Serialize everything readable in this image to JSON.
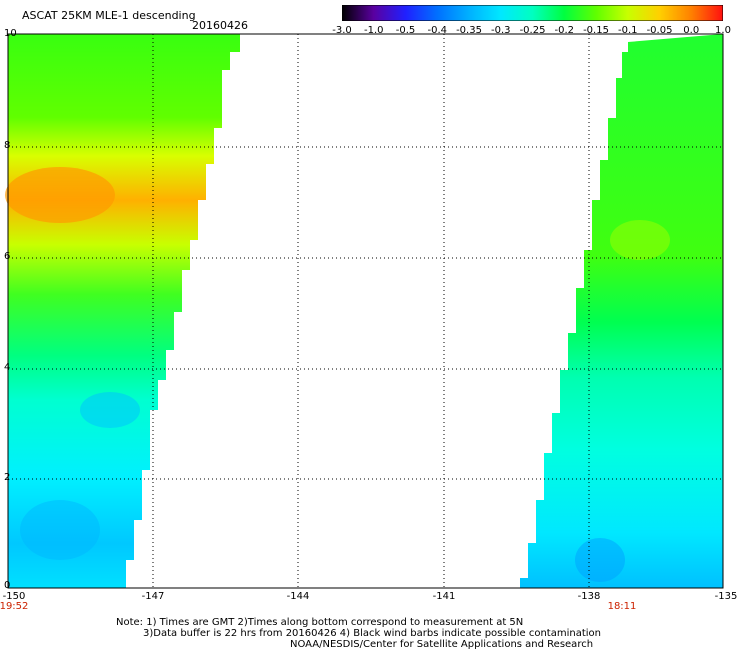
{
  "header": {
    "title": "ASCAT 25KM MLE-1 descending",
    "date": "20160426"
  },
  "colorbar": {
    "labels": [
      "-3.0",
      "-1.0",
      "-0.5",
      "-0.4",
      "-0.35",
      "-0.3",
      "-0.25",
      "-0.2",
      "-0.15",
      "-0.1",
      "-0.05",
      "0.0",
      "1.0"
    ],
    "colors": [
      "#000000",
      "#5a00a0",
      "#2020ff",
      "#0070ff",
      "#00b0ff",
      "#00e8ff",
      "#00ffc0",
      "#00ff40",
      "#60ff00",
      "#c8ff00",
      "#ffd000",
      "#ff8000",
      "#ff1010"
    ]
  },
  "axes": {
    "x_ticks": [
      "-150",
      "-147",
      "-144",
      "-141",
      "-138",
      "-135"
    ],
    "y_ticks": [
      "0",
      "2",
      "4",
      "6",
      "8",
      "10"
    ],
    "xlim": [
      -150,
      -135
    ],
    "ylim": [
      0,
      10
    ],
    "grid": "dotted"
  },
  "times": {
    "left": "19:52",
    "right": "18:11"
  },
  "notes": {
    "line1": "Note: 1) Times are GMT 2)Times along bottom correspond to measurement at 5N",
    "line2": "3)Data buffer is 22 hrs from 20160426 4) Black wind barbs indicate possible contamination",
    "line3": "NOAA/NESDIS/Center for Satellite Applications and Research"
  }
}
